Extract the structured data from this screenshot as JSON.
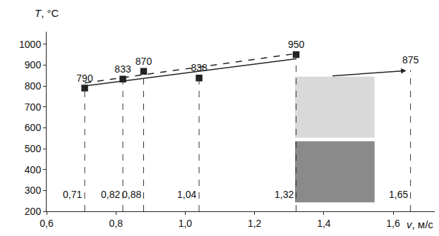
{
  "chart_data": {
    "type": "scatter",
    "xlabel": "v, м/с",
    "ylabel": "T, °C",
    "xlim": [
      0.6,
      1.72
    ],
    "ylim": [
      200,
      1060
    ],
    "xticks": [
      {
        "value": 0.6,
        "label": "0,6"
      },
      {
        "value": 0.8,
        "label": "0,8"
      },
      {
        "value": 1.0,
        "label": "1,0"
      },
      {
        "value": 1.2,
        "label": "1,2"
      },
      {
        "value": 1.4,
        "label": "1,4"
      },
      {
        "value": 1.6,
        "label": "1,6"
      }
    ],
    "yticks": [
      200,
      300,
      400,
      500,
      600,
      700,
      800,
      900,
      1000
    ],
    "grid": false,
    "series": [
      {
        "type": "scatter",
        "marker": "square",
        "color": "#222222",
        "data_labels": true,
        "x": [
          0.71,
          0.82,
          0.88,
          1.04,
          1.32
        ],
        "values": [
          790,
          833,
          870,
          838,
          950
        ],
        "x_labels": [
          "0,71",
          "0,82",
          "0,88",
          "1,04",
          "1,32"
        ]
      },
      {
        "type": "scatter",
        "marker": "square-open",
        "color": "#222222",
        "data_labels": true,
        "x": [
          1.65
        ],
        "values": [
          875
        ],
        "x_labels": [
          "1,65"
        ]
      },
      {
        "type": "line",
        "line_style": "dash",
        "color": "#222222",
        "x": [
          0.71,
          1.32
        ],
        "values": [
          815,
          955
        ]
      },
      {
        "type": "line",
        "line_style": "solid",
        "color": "#222222",
        "x": [
          0.71,
          1.32
        ],
        "values": [
          800,
          930
        ]
      }
    ]
  }
}
